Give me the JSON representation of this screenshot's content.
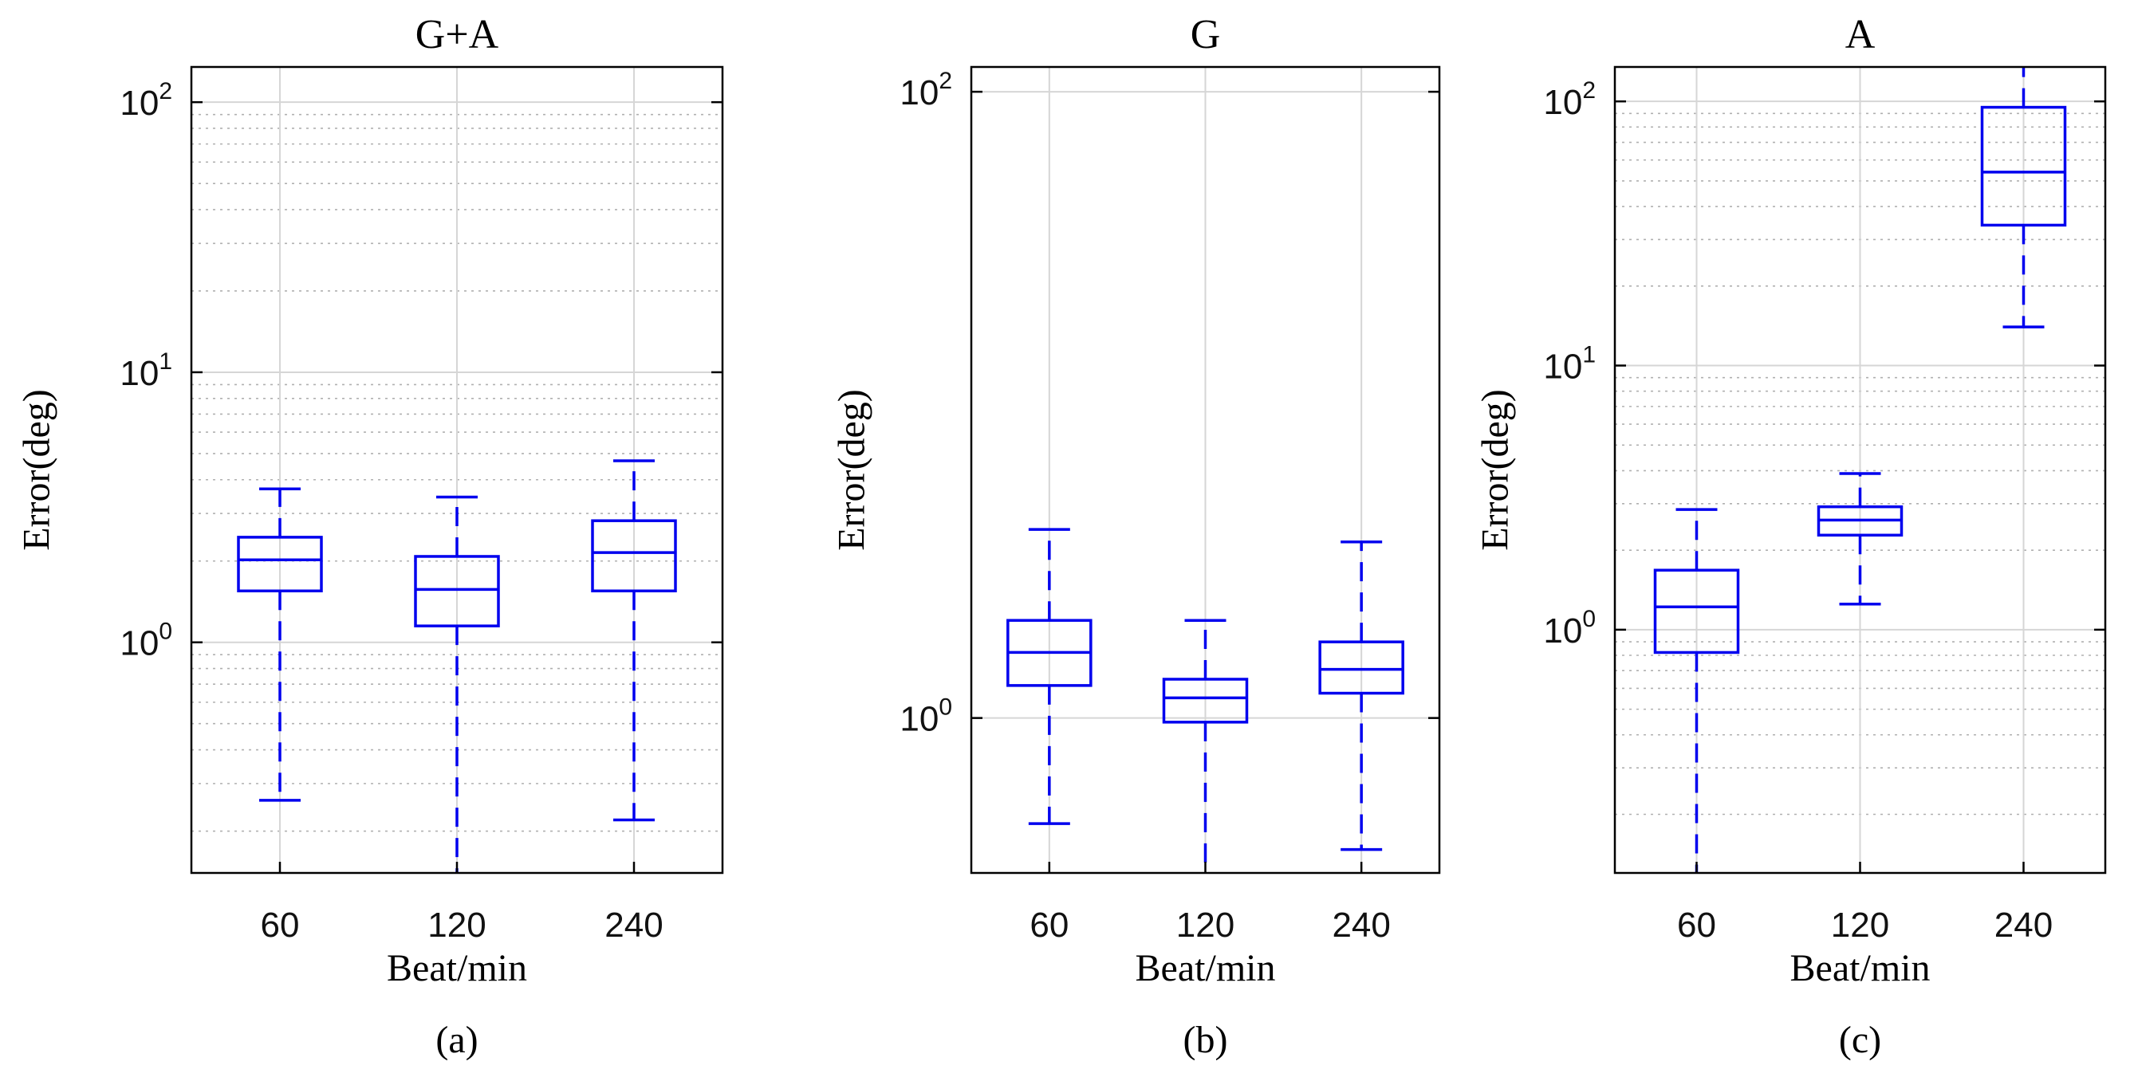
{
  "colors": {
    "box": "#0000ee",
    "frame": "#000000",
    "grid": "#d6d6d6"
  },
  "chart_data": [
    {
      "type": "box",
      "title": "G+A",
      "subtitle": "(a)",
      "xlabel": "Beat/min",
      "ylabel": "Error(deg)",
      "yscale": "log",
      "ylim": [
        0.14,
        135
      ],
      "major_ticks": [
        1,
        10,
        100
      ],
      "major_tick_labels": [
        {
          "base": "10",
          "exp": "0"
        },
        {
          "base": "10",
          "exp": "1"
        },
        {
          "base": "10",
          "exp": "2"
        }
      ],
      "minor_gridlines": true,
      "categories": [
        "60",
        "120",
        "240"
      ],
      "boxes": [
        {
          "category": "60",
          "whisker_low": 0.26,
          "q1": 1.55,
          "median": 2.02,
          "q3": 2.45,
          "whisker_high": 3.7
        },
        {
          "category": "120",
          "whisker_low": 0.14,
          "q1": 1.15,
          "median": 1.57,
          "q3": 2.08,
          "whisker_high": 3.45
        },
        {
          "category": "240",
          "whisker_low": 0.22,
          "q1": 1.55,
          "median": 2.15,
          "q3": 2.82,
          "whisker_high": 4.7
        }
      ]
    },
    {
      "type": "box",
      "title": "G",
      "subtitle": "(b)",
      "xlabel": "Beat/min",
      "ylabel": "Error(deg)",
      "yscale": "log",
      "ylim": [
        0.32,
        120
      ],
      "major_ticks": [
        1,
        100
      ],
      "major_tick_labels": [
        {
          "base": "10",
          "exp": "0"
        },
        {
          "base": "10",
          "exp": "2"
        }
      ],
      "minor_gridlines": false,
      "categories": [
        "60",
        "120",
        "240"
      ],
      "boxes": [
        {
          "category": "60",
          "whisker_low": 0.46,
          "q1": 1.27,
          "median": 1.62,
          "q3": 2.05,
          "whisker_high": 4.0
        },
        {
          "category": "120",
          "whisker_low": 0.32,
          "q1": 0.97,
          "median": 1.16,
          "q3": 1.33,
          "whisker_high": 2.05
        },
        {
          "category": "240",
          "whisker_low": 0.38,
          "q1": 1.2,
          "median": 1.43,
          "q3": 1.75,
          "whisker_high": 3.65
        }
      ]
    },
    {
      "type": "box",
      "title": "A",
      "subtitle": "(c)",
      "xlabel": "Beat/min",
      "ylabel": "Error(deg)",
      "yscale": "log",
      "ylim": [
        0.12,
        135
      ],
      "major_ticks": [
        1,
        10,
        100
      ],
      "major_tick_labels": [
        {
          "base": "10",
          "exp": "0"
        },
        {
          "base": "10",
          "exp": "1"
        },
        {
          "base": "10",
          "exp": "2"
        }
      ],
      "minor_gridlines": true,
      "categories": [
        "60",
        "120",
        "240"
      ],
      "boxes": [
        {
          "category": "60",
          "whisker_low": 0.12,
          "q1": 0.82,
          "median": 1.22,
          "q3": 1.68,
          "whisker_high": 2.85
        },
        {
          "category": "120",
          "whisker_low": 1.25,
          "q1": 2.28,
          "median": 2.6,
          "q3": 2.92,
          "whisker_high": 3.9
        },
        {
          "category": "240",
          "whisker_low": 14.0,
          "q1": 34.0,
          "median": 54.0,
          "q3": 95.0,
          "whisker_high": 135
        }
      ]
    }
  ]
}
